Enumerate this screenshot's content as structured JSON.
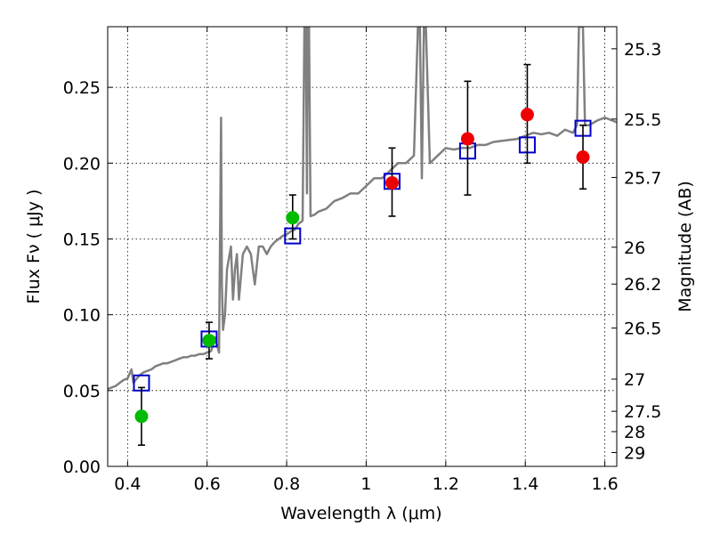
{
  "chart_data": {
    "type": "scatter",
    "xlabel": "Wavelength  λ (μm)",
    "ylabel": "Flux  Fν  ( μJy )",
    "y2label": "Magnitude (AB)",
    "xlim": [
      0.35,
      1.63
    ],
    "ylim": [
      0.0,
      0.29
    ],
    "grid": true,
    "x_ticks": [
      0.4,
      0.6,
      0.8,
      1.0,
      1.2,
      1.4,
      1.6
    ],
    "x_tick_labels": [
      "0.4",
      "0.6",
      "0.8",
      "1",
      "1.2",
      "1.4",
      "1.6"
    ],
    "y_ticks": [
      0.0,
      0.05,
      0.1,
      0.15,
      0.2,
      0.25
    ],
    "y_tick_labels": [
      "0.00",
      "0.05",
      "0.10",
      "0.15",
      "0.20",
      "0.25"
    ],
    "mag_ticks": [
      "25.3",
      "25.5",
      "25.7",
      "26",
      "26.2",
      "26.5",
      "27",
      "27.5",
      "28",
      "29"
    ],
    "colors": {
      "spectrum": "#808080",
      "model": "#0000cc",
      "green": "#00bb00",
      "red": "#ee0000",
      "errorbar": "#000000"
    },
    "series": [
      {
        "name": "model spectrum",
        "kind": "line",
        "x": [
          0.35,
          0.36,
          0.37,
          0.38,
          0.39,
          0.4,
          0.41,
          0.415,
          0.42,
          0.43,
          0.44,
          0.45,
          0.46,
          0.47,
          0.48,
          0.49,
          0.5,
          0.51,
          0.52,
          0.53,
          0.54,
          0.55,
          0.56,
          0.57,
          0.58,
          0.59,
          0.6,
          0.61,
          0.62,
          0.63,
          0.635,
          0.637,
          0.64,
          0.645,
          0.65,
          0.66,
          0.665,
          0.67,
          0.675,
          0.68,
          0.69,
          0.7,
          0.71,
          0.72,
          0.73,
          0.74,
          0.75,
          0.76,
          0.77,
          0.78,
          0.79,
          0.8,
          0.81,
          0.82,
          0.83,
          0.84,
          0.845,
          0.848,
          0.851,
          0.853,
          0.856,
          0.86,
          0.87,
          0.88,
          0.9,
          0.92,
          0.94,
          0.96,
          0.98,
          1.0,
          1.02,
          1.04,
          1.06,
          1.08,
          1.1,
          1.12,
          1.13,
          1.135,
          1.14,
          1.145,
          1.15,
          1.16,
          1.18,
          1.2,
          1.22,
          1.24,
          1.26,
          1.28,
          1.3,
          1.32,
          1.35,
          1.38,
          1.4,
          1.42,
          1.44,
          1.46,
          1.48,
          1.5,
          1.52,
          1.53,
          1.535,
          1.54,
          1.545,
          1.55,
          1.56,
          1.58,
          1.6,
          1.62,
          1.63
        ],
        "y": [
          0.051,
          0.052,
          0.053,
          0.055,
          0.057,
          0.058,
          0.064,
          0.055,
          0.057,
          0.06,
          0.062,
          0.063,
          0.064,
          0.066,
          0.067,
          0.068,
          0.068,
          0.069,
          0.07,
          0.071,
          0.072,
          0.072,
          0.073,
          0.073,
          0.074,
          0.074,
          0.075,
          0.076,
          0.085,
          0.075,
          0.23,
          0.12,
          0.09,
          0.1,
          0.13,
          0.145,
          0.11,
          0.13,
          0.14,
          0.11,
          0.14,
          0.145,
          0.14,
          0.12,
          0.145,
          0.145,
          0.14,
          0.145,
          0.148,
          0.15,
          0.152,
          0.153,
          0.155,
          0.156,
          0.16,
          0.162,
          0.3,
          0.3,
          0.18,
          0.3,
          0.3,
          0.165,
          0.166,
          0.168,
          0.17,
          0.175,
          0.177,
          0.18,
          0.18,
          0.185,
          0.19,
          0.19,
          0.195,
          0.2,
          0.2,
          0.205,
          0.29,
          0.29,
          0.19,
          0.29,
          0.29,
          0.2,
          0.205,
          0.21,
          0.209,
          0.21,
          0.21,
          0.212,
          0.212,
          0.214,
          0.215,
          0.216,
          0.218,
          0.22,
          0.219,
          0.22,
          0.218,
          0.222,
          0.22,
          0.225,
          0.29,
          0.29,
          0.29,
          0.225,
          0.225,
          0.228,
          0.23,
          0.228,
          0.227
        ]
      },
      {
        "name": "model photometry",
        "kind": "markers",
        "marker": "open-square",
        "x": [
          0.435,
          0.605,
          0.815,
          1.065,
          1.255,
          1.405,
          1.545
        ],
        "y": [
          0.055,
          0.084,
          0.152,
          0.188,
          0.208,
          0.212,
          0.223
        ]
      },
      {
        "name": "observed (green)",
        "kind": "markers-with-errors",
        "marker": "filled-circle",
        "x": [
          0.435,
          0.605,
          0.815
        ],
        "y": [
          0.033,
          0.083,
          0.164
        ],
        "yerr_low": [
          0.019,
          0.012,
          0.014
        ],
        "yerr_high": [
          0.019,
          0.012,
          0.015
        ]
      },
      {
        "name": "observed (red)",
        "kind": "markers-with-errors",
        "marker": "filled-circle",
        "x": [
          1.065,
          1.255,
          1.405,
          1.545
        ],
        "y": [
          0.187,
          0.216,
          0.232,
          0.204
        ],
        "yerr_low": [
          0.022,
          0.037,
          0.032,
          0.021
        ],
        "yerr_high": [
          0.023,
          0.038,
          0.033,
          0.021
        ]
      }
    ]
  }
}
